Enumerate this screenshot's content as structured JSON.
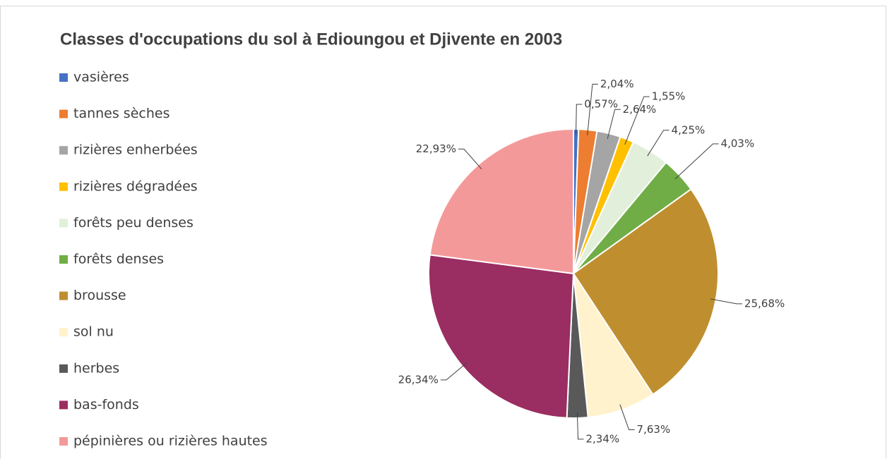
{
  "chart_data": {
    "type": "pie",
    "title": "Classes d'occupations du sol à Edioungou et Djivente en 2003",
    "categories": [
      "vasières",
      "tannes sèches",
      "rizières enherbées",
      "rizières dégradées",
      "forêts peu denses",
      "forêts denses",
      "brousse",
      "sol nu",
      "herbes",
      "bas-fonds",
      "pépinières ou rizières hautes"
    ],
    "values": [
      0.57,
      2.04,
      2.64,
      1.55,
      4.25,
      4.03,
      25.68,
      7.63,
      2.34,
      26.34,
      22.93
    ],
    "value_labels": [
      "0,57%",
      "2,04%",
      "2,64%",
      "1,55%",
      "4,25%",
      "4,03%",
      "25,68%",
      "7,63%",
      "2,34%",
      "26,34%",
      "22,93%"
    ],
    "colors": [
      "#4472c4",
      "#ed7d31",
      "#a5a5a5",
      "#ffc000",
      "#e2efda",
      "#70ad47",
      "#bf8f2f",
      "#fff2cc",
      "#595959",
      "#9a2d62",
      "#f4999a"
    ],
    "legend": "left"
  }
}
